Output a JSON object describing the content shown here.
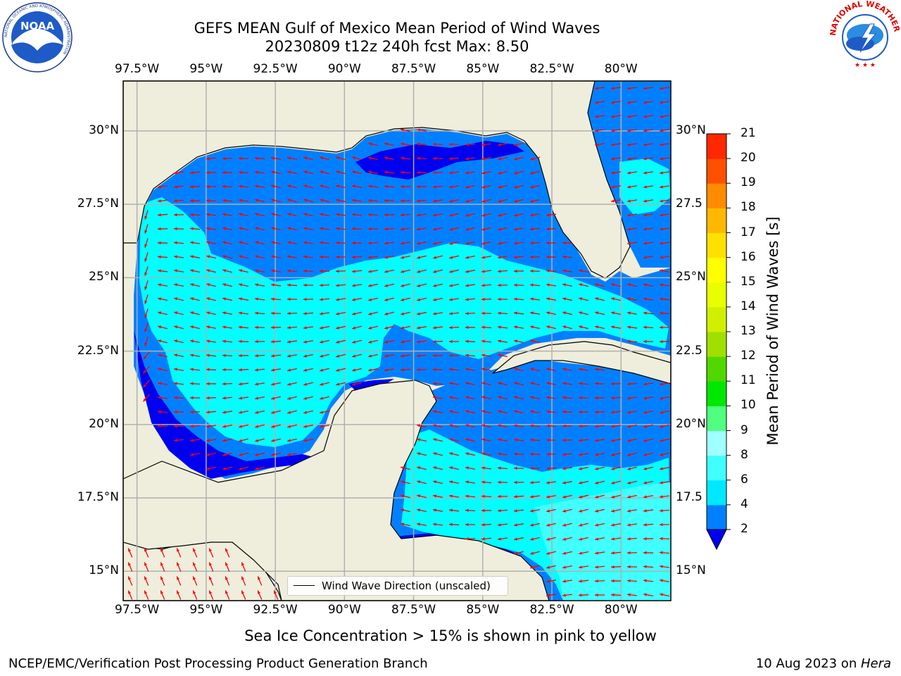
{
  "title": {
    "line1": "GEFS MEAN Gulf of Mexico Mean Period of Wind Waves",
    "line2": "20230809 t12z 240h fcst   Max: 8.50"
  },
  "map": {
    "lon_ticks": [
      "97.5°W",
      "95°W",
      "92.5°W",
      "90°W",
      "87.5°W",
      "85°W",
      "82.5°W",
      "80°W"
    ],
    "lon_values": [
      -97.5,
      -95,
      -92.5,
      -90,
      -87.5,
      -85,
      -82.5,
      -80
    ],
    "lat_ticks_left": [
      "30°N",
      "27.5°N",
      "25°N",
      "22.5°N",
      "20°N",
      "17.5°N",
      "15°N"
    ],
    "lat_ticks_right": [
      "30°N",
      "27.5",
      "25°N",
      "22.5",
      "20°N",
      "17.5",
      "15°N"
    ],
    "lat_values": [
      30,
      27.5,
      25,
      22.5,
      20,
      17.5,
      15
    ],
    "lon_range": [
      -98,
      -78.2
    ],
    "lat_range": [
      14,
      31.7
    ],
    "grid": true,
    "legend_label": "Wind Wave Direction (unscaled)"
  },
  "colorbar": {
    "label": "Mean Period of Wind Waves [s]",
    "levels": [
      2,
      4,
      6,
      8,
      9,
      10,
      11,
      12,
      13,
      14,
      15,
      16,
      17,
      18,
      19,
      20,
      21
    ],
    "colors": [
      "#0080ff",
      "#00e8ff",
      "#40ffff",
      "#a0ffff",
      "#50ff80",
      "#00e800",
      "#50d800",
      "#a0e000",
      "#d0f000",
      "#e8ff00",
      "#ffff00",
      "#ffe000",
      "#ffb800",
      "#ff8c00",
      "#ff5000",
      "#ff2800"
    ],
    "under_color": "#0000f0",
    "extend": "min"
  },
  "colors": {
    "land": "#efeedc",
    "ocean_mid": "#0080ff",
    "ocean_low": "#0000f0",
    "ocean_high": "#00ffff",
    "ocean_higher": "#40ffff",
    "arrow": "#ff0000"
  },
  "subtitle": "Sea Ice Concentration > 15% is shown in pink to yellow",
  "footer": {
    "left": "NCEP/EMC/Verification Post Processing Product Generation Branch",
    "right_date": "10 Aug 2023 on ",
    "right_machine": "Hera"
  },
  "logos": {
    "noaa_text": "NOAA",
    "noaa_ring": "NATIONAL OCEANIC AND ATMOSPHERIC ADMINISTRATION",
    "noaa_ring_bottom": "U.S. DEPARTMENT OF COMMERCE",
    "nws_ring": "NATIONAL WEATHER SERVICE"
  }
}
